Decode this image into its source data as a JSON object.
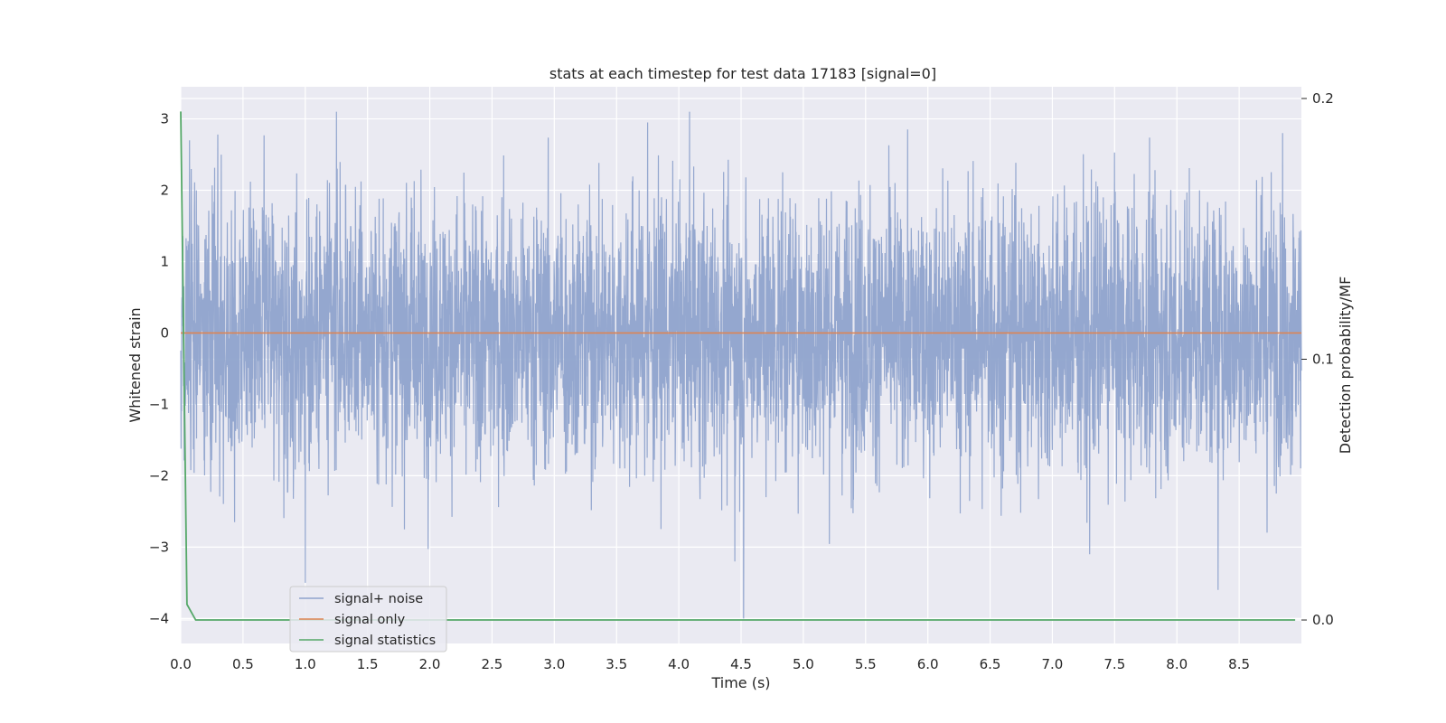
{
  "chart_data": {
    "type": "line",
    "title": "stats at each timestep for test data 17183 [signal=0]",
    "xlabel": "Time (s)",
    "ylabel": "Whitened strain",
    "y2label": "Detection probability/MF",
    "xlim": [
      0,
      9.0
    ],
    "ylim": [
      -4.35,
      3.45
    ],
    "y2lim": [
      -0.009,
      0.2045
    ],
    "xticks": [
      0.0,
      0.5,
      1.0,
      1.5,
      2.0,
      2.5,
      3.0,
      3.5,
      4.0,
      4.5,
      5.0,
      5.5,
      6.0,
      6.5,
      7.0,
      7.5,
      8.0,
      8.5
    ],
    "xtick_labels": [
      "0.0",
      "0.5",
      "1.0",
      "1.5",
      "2.0",
      "2.5",
      "3.0",
      "3.5",
      "4.0",
      "4.5",
      "5.0",
      "5.5",
      "6.0",
      "6.5",
      "7.0",
      "7.5",
      "8.0",
      "8.5"
    ],
    "yticks": [
      -4,
      -3,
      -2,
      -1,
      0,
      1,
      2,
      3
    ],
    "ytick_labels": [
      "−4",
      "−3",
      "−2",
      "−1",
      "0",
      "1",
      "2",
      "3"
    ],
    "y2ticks": [
      0.0,
      0.1,
      0.2
    ],
    "y2tick_labels": [
      "0.0",
      "0.1",
      "0.2"
    ],
    "grid": true,
    "legend_position": "lower-left",
    "series": [
      {
        "name": "signal+ noise",
        "axis": "left",
        "color": "#8fa3cc",
        "description_stats": {
          "mean": 0,
          "std": 0.95,
          "min": -4.0,
          "max": 3.1,
          "duration_s": 9.0
        },
        "notable_peaks": [
          {
            "x": 1.0,
            "y": -3.5
          },
          {
            "x": 1.25,
            "y": 3.1
          },
          {
            "x": 3.75,
            "y": 2.95
          },
          {
            "x": 4.45,
            "y": -3.2
          },
          {
            "x": 4.52,
            "y": -4.0
          },
          {
            "x": 7.3,
            "y": -3.1
          },
          {
            "x": 8.33,
            "y": -3.6
          },
          {
            "x": 8.85,
            "y": 2.8
          },
          {
            "x": 0.07,
            "y": 2.7
          }
        ]
      },
      {
        "name": "signal only",
        "axis": "left",
        "color": "#dd8452",
        "x": [
          0.0,
          9.0
        ],
        "y": [
          0.0,
          0.0
        ]
      },
      {
        "name": "signal statistics",
        "axis": "right",
        "color": "#55a868",
        "x": [
          0.0,
          0.05,
          0.12,
          0.5,
          1.0,
          2.0,
          3.0,
          4.0,
          5.0,
          6.0,
          7.0,
          8.0,
          8.95
        ],
        "y": [
          0.195,
          0.006,
          0.0,
          0.0,
          0.0,
          0.0,
          0.0,
          0.0,
          0.0,
          0.0,
          0.0,
          0.0,
          0.0
        ]
      }
    ]
  }
}
